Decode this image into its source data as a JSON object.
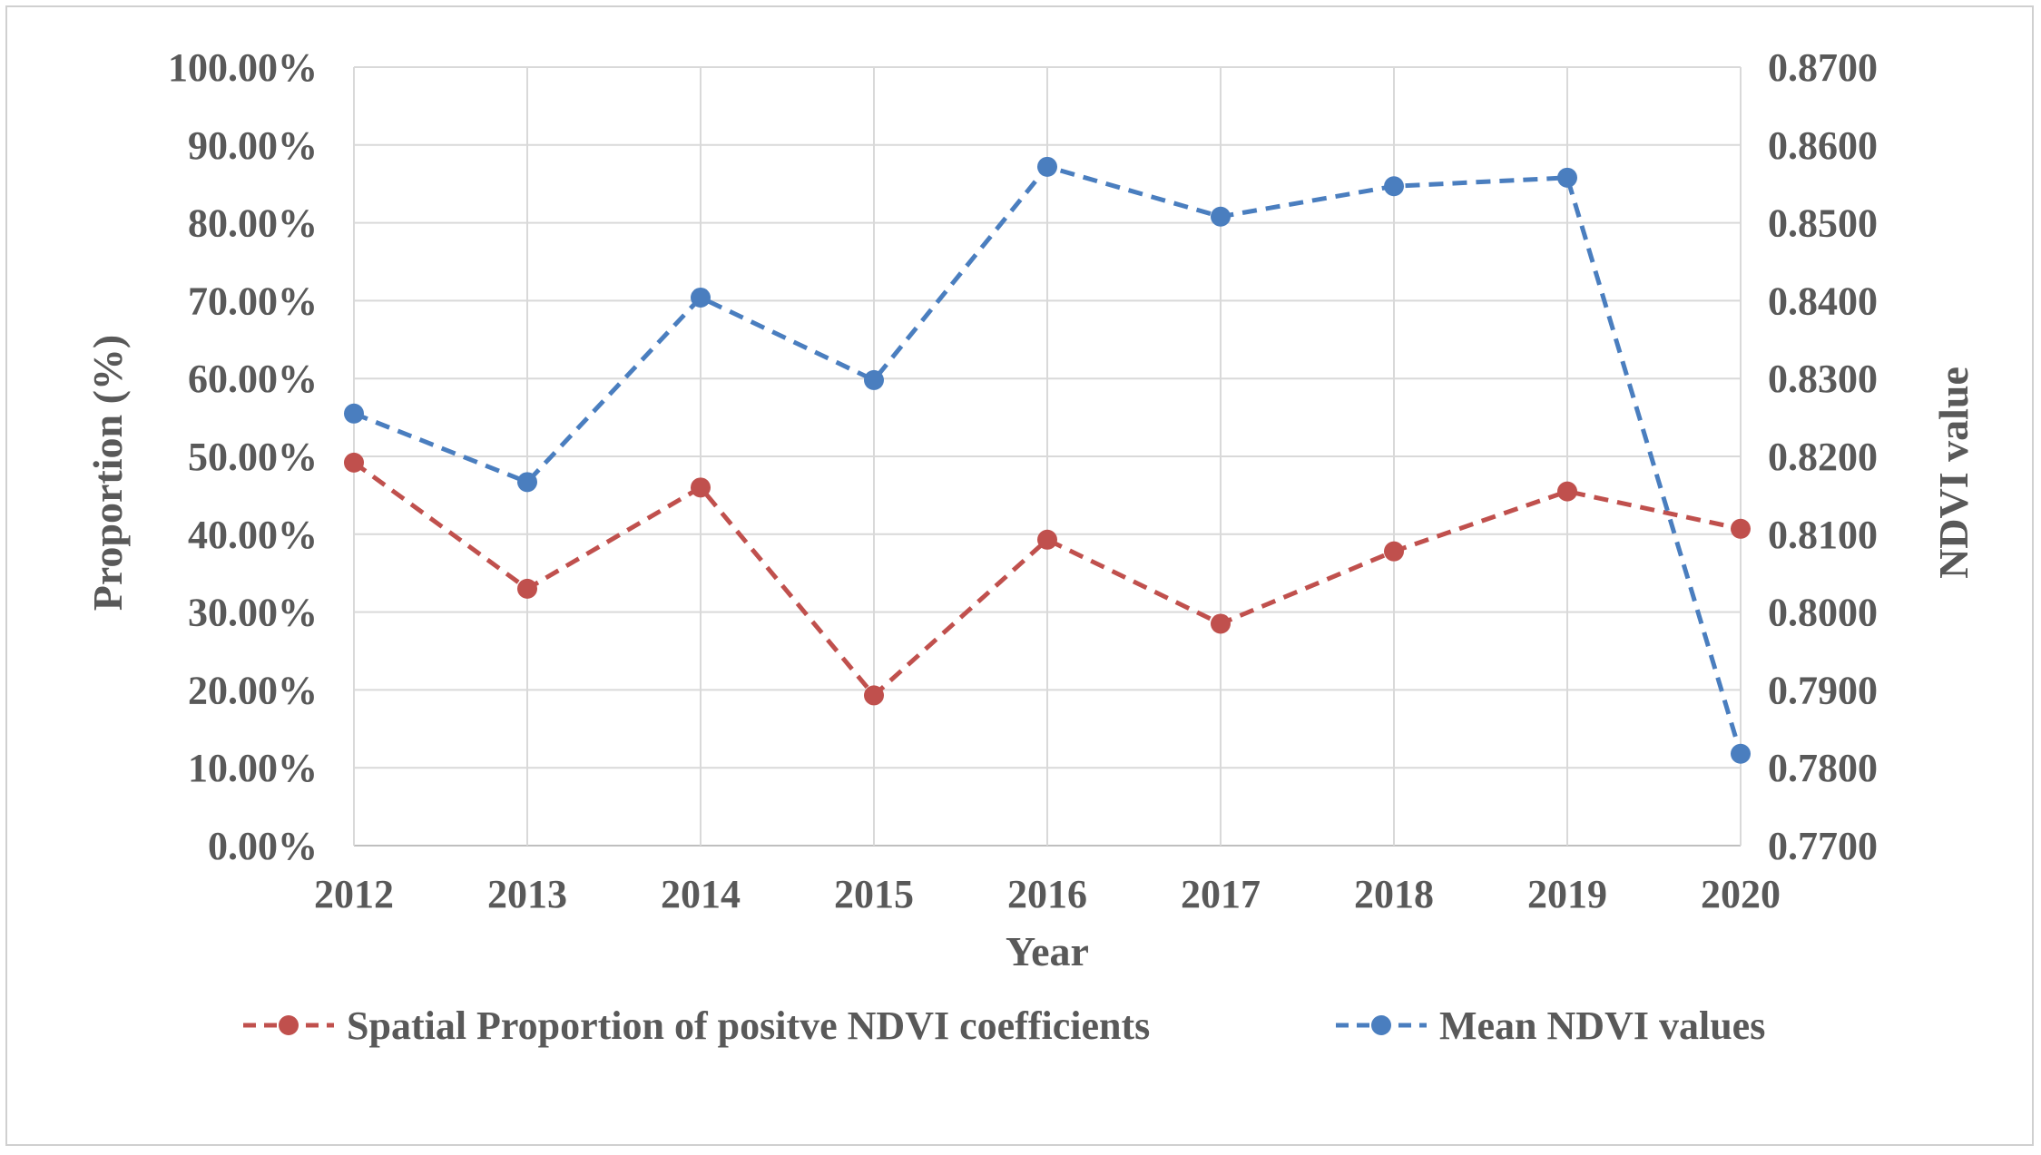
{
  "chart_data": {
    "type": "line",
    "categories": [
      "2012",
      "2013",
      "2014",
      "2015",
      "2016",
      "2017",
      "2018",
      "2019",
      "2020"
    ],
    "xlabel": "Year",
    "ylabel": "Proportion (%)",
    "y2label": "NDVI value",
    "ylim": [
      0,
      100
    ],
    "y2lim": [
      0.77,
      0.87
    ],
    "y_ticks": [
      "0.00%",
      "10.00%",
      "20.00%",
      "30.00%",
      "40.00%",
      "50.00%",
      "60.00%",
      "70.00%",
      "80.00%",
      "90.00%",
      "100.00%"
    ],
    "y2_ticks": [
      "0.7700",
      "0.7800",
      "0.7900",
      "0.8000",
      "0.8100",
      "0.8200",
      "0.8300",
      "0.8400",
      "0.8500",
      "0.8600",
      "0.8700"
    ],
    "grid": true,
    "legend_position": "bottom",
    "series": [
      {
        "name": "Spatial Proportion of positve NDVI coefficients",
        "axis": "left",
        "color": "#c0504d",
        "line_style": "dashed",
        "values": [
          49.2,
          33.0,
          46.0,
          19.3,
          39.3,
          28.5,
          37.8,
          45.5,
          40.7
        ]
      },
      {
        "name": "Mean NDVI values",
        "axis": "right",
        "color": "#4a7ebf",
        "line_style": "dashed",
        "values": [
          0.8255,
          0.8167,
          0.8404,
          0.8298,
          0.8572,
          0.8508,
          0.8547,
          0.8558,
          0.7818
        ]
      }
    ]
  }
}
